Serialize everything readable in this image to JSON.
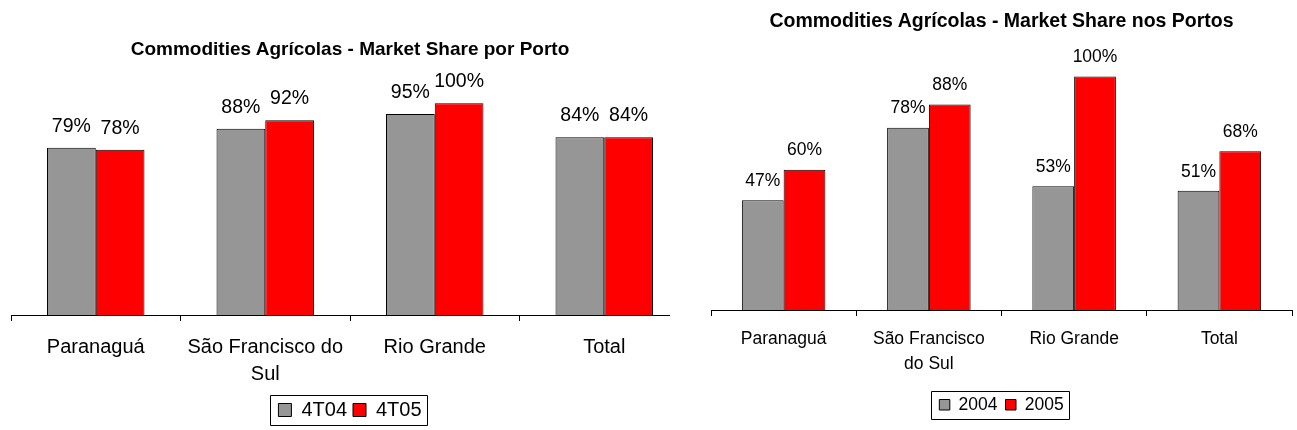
{
  "chart_data": [
    {
      "type": "bar",
      "title": "Commodities Agrícolas - Market Share por Porto",
      "categories": [
        "Paranaguá",
        "São Francisco do Sul",
        "Rio Grande",
        "Total"
      ],
      "series": [
        {
          "name": "4T04",
          "color": "#969696",
          "values": [
            79,
            88,
            95,
            84
          ],
          "value_labels": [
            "79%",
            "88%",
            "95%",
            "84%"
          ]
        },
        {
          "name": "4T05",
          "color": "#ff0000",
          "values": [
            78,
            92,
            100,
            84
          ],
          "value_labels": [
            "78%",
            "92%",
            "100%",
            "84%"
          ]
        }
      ],
      "tick_labels": "x",
      "legend": "bottom"
    },
    {
      "type": "bar",
      "title": "Commodities Agrícolas - Market Share nos Portos",
      "categories": [
        "Paranaguá",
        "São Francisco do Sul",
        "Rio Grande",
        "Total"
      ],
      "series": [
        {
          "name": "2004",
          "color": "#969696",
          "values": [
            47,
            78,
            53,
            51
          ],
          "value_labels": [
            "47%",
            "78%",
            "53%",
            "51%"
          ]
        },
        {
          "name": "2005",
          "color": "#ff0000",
          "values": [
            60,
            88,
            100,
            68
          ],
          "value_labels": [
            "60%",
            "88%",
            "100%",
            "68%"
          ]
        }
      ],
      "tick_labels": "x",
      "legend": "bottom"
    }
  ]
}
